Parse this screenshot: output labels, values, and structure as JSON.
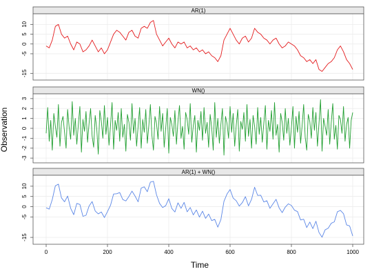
{
  "chart_data": {
    "type": "line",
    "xlabel": "Time",
    "ylabel": "Observation",
    "xlim": [
      0,
      1000
    ],
    "x_ticks": [
      0,
      200,
      400,
      600,
      800,
      1000
    ],
    "grid": true,
    "panels": [
      {
        "title": "AR(1)",
        "color": "#e41a1c",
        "ylim": [
          -17,
          14
        ],
        "y_ticks": [
          10,
          5,
          0,
          -5,
          -15
        ],
        "series": [
          {
            "x": [
              0,
              10,
              20,
              30,
              40,
              50,
              60,
              70,
              80,
              90,
              100,
              110,
              120,
              130,
              140,
              150,
              160,
              170,
              180,
              190,
              200,
              210,
              220,
              230,
              240,
              250,
              260,
              270,
              280,
              290,
              300,
              310,
              320,
              330,
              340,
              350,
              360,
              370,
              380,
              390,
              400,
              410,
              420,
              430,
              440,
              450,
              460,
              470,
              480,
              490,
              500,
              510,
              520,
              530,
              540,
              550,
              560,
              570,
              580,
              590,
              600,
              610,
              620,
              630,
              640,
              650,
              660,
              670,
              680,
              690,
              700,
              710,
              720,
              730,
              740,
              750,
              760,
              770,
              780,
              790,
              800,
              810,
              820,
              830,
              840,
              850,
              860,
              870,
              880,
              890,
              900,
              910,
              920,
              930,
              940,
              950,
              960,
              970,
              980,
              990,
              1000
            ],
            "y": [
              -1,
              -2,
              2,
              9,
              10,
              5,
              3,
              4,
              0,
              -3,
              1,
              0,
              -4,
              -3,
              -1,
              2,
              -1,
              -4,
              -2,
              -5,
              -3,
              1,
              5,
              7,
              6,
              4,
              2,
              6,
              7,
              4,
              3,
              8,
              9,
              8,
              11,
              12,
              5,
              2,
              -1,
              1,
              3,
              0,
              -2,
              1,
              0,
              1,
              -2,
              -1,
              -3,
              -2,
              -4,
              -3,
              -5,
              -4,
              -6,
              -7,
              -9,
              -6,
              2,
              5,
              8,
              5,
              2,
              0,
              3,
              4,
              1,
              3,
              8,
              6,
              5,
              3,
              2,
              0,
              2,
              3,
              0,
              -2,
              -1,
              1,
              0,
              -1,
              -3,
              -6,
              -7,
              -9,
              -8,
              -10,
              -8,
              -13,
              -14,
              -12,
              -10,
              -9,
              -7,
              -3,
              -1,
              -4,
              -8,
              -10,
              -13
            ]
          }
        ]
      },
      {
        "title": "WN()",
        "color": "#1f9e2f",
        "ylim": [
          -3.2,
          3.2
        ],
        "y_ticks": [
          3,
          2,
          1,
          0,
          -1,
          -2,
          -3
        ],
        "series": [
          {
            "x": [
              0,
              5,
              10,
              15,
              20,
              25,
              30,
              35,
              40,
              45,
              50,
              55,
              60,
              65,
              70,
              75,
              80,
              85,
              90,
              95,
              100,
              105,
              110,
              115,
              120,
              125,
              130,
              135,
              140,
              145,
              150,
              155,
              160,
              165,
              170,
              175,
              180,
              185,
              190,
              195,
              200,
              205,
              210,
              215,
              220,
              225,
              230,
              235,
              240,
              245,
              250,
              255,
              260,
              265,
              270,
              275,
              280,
              285,
              290,
              295,
              300,
              305,
              310,
              315,
              320,
              325,
              330,
              335,
              340,
              345,
              350,
              355,
              360,
              365,
              370,
              375,
              380,
              385,
              390,
              395,
              400,
              405,
              410,
              415,
              420,
              425,
              430,
              435,
              440,
              445,
              450,
              455,
              460,
              465,
              470,
              475,
              480,
              485,
              490,
              495,
              500,
              505,
              510,
              515,
              520,
              525,
              530,
              535,
              540,
              545,
              550,
              555,
              560,
              565,
              570,
              575,
              580,
              585,
              590,
              595,
              600,
              605,
              610,
              615,
              620,
              625,
              630,
              635,
              640,
              645,
              650,
              655,
              660,
              665,
              670,
              675,
              680,
              685,
              690,
              695,
              700,
              705,
              710,
              715,
              720,
              725,
              730,
              735,
              740,
              745,
              750,
              755,
              760,
              765,
              770,
              775,
              780,
              785,
              790,
              795,
              800,
              805,
              810,
              815,
              820,
              825,
              830,
              835,
              840,
              845,
              850,
              855,
              860,
              865,
              870,
              875,
              880,
              885,
              890,
              895,
              900,
              905,
              910,
              915,
              920,
              925,
              930,
              935,
              940,
              945,
              950,
              955,
              960,
              965,
              970,
              975,
              980,
              985,
              990,
              995,
              1000
            ],
            "y": [
              -0.5,
              2.1,
              -1.3,
              0.8,
              -2.2,
              1.5,
              0.2,
              -0.9,
              2.4,
              -1.8,
              0.6,
              1.2,
              -0.4,
              -2.0,
              1.9,
              0.1,
              -1.1,
              2.7,
              -0.7,
              1.0,
              -1.6,
              0.4,
              2.2,
              -2.4,
              0.9,
              -0.3,
              1.7,
              -1.4,
              0.5,
              2.0,
              -0.8,
              -1.9,
              1.3,
              0.0,
              -2.6,
              1.8,
              0.7,
              -1.0,
              2.3,
              -0.6,
              1.1,
              -1.7,
              0.3,
              2.6,
              -2.1,
              0.8,
              -0.2,
              1.6,
              -1.3,
              2.0,
              -0.9,
              0.4,
              -2.3,
              1.4,
              0.6,
              -1.2,
              2.5,
              -0.5,
              1.0,
              -1.8,
              0.2,
              2.1,
              -2.0,
              0.9,
              -0.4,
              1.9,
              -1.5,
              0.3,
              2.4,
              -0.7,
              -2.2,
              1.2,
              0.5,
              -1.1,
              2.2,
              -0.3,
              1.5,
              -1.9,
              0.0,
              2.0,
              -2.5,
              1.1,
              0.4,
              -0.8,
              1.8,
              -1.6,
              0.7,
              2.3,
              -1.0,
              0.2,
              -2.1,
              1.6,
              0.9,
              -0.6,
              2.5,
              -1.4,
              0.3,
              1.3,
              -2.4,
              0.8,
              -0.2,
              1.7,
              -1.2,
              2.1,
              -0.5,
              0.6,
              -1.9,
              1.4,
              0.1,
              -2.2,
              2.6,
              -0.9,
              1.0,
              -1.5,
              0.4,
              2.0,
              -2.7,
              1.2,
              0.5,
              -1.0,
              2.2,
              -0.4,
              1.5,
              -1.8,
              0.3,
              1.9,
              -2.3,
              0.7,
              -0.1,
              1.6,
              -1.3,
              2.4,
              -0.8,
              0.9,
              -2.0,
              1.3,
              0.2,
              -1.6,
              2.1,
              -0.6,
              1.1,
              -1.4,
              0.5,
              2.3,
              -2.1,
              0.8,
              -0.3,
              1.8,
              -1.1,
              2.6,
              -0.7,
              0.4,
              -2.4,
              1.5,
              0.6,
              -1.2,
              2.0,
              -0.5,
              1.0,
              -1.7,
              0.1,
              2.2,
              -2.0,
              1.2,
              -0.4,
              1.7,
              -1.5,
              0.3,
              2.4,
              -0.9,
              -2.2,
              1.4,
              0.7,
              -1.0,
              2.1,
              -0.2,
              1.6,
              -1.8,
              0.5,
              2.9,
              -2.3,
              1.0,
              0.2,
              -0.7,
              1.9,
              -1.6,
              0.6,
              2.5,
              -1.1,
              0.3,
              -2.1,
              1.3,
              0.9,
              -0.5,
              2.2,
              -1.3,
              0.4,
              1.1,
              -2.0,
              0.8,
              1.6
            ]
          }
        ]
      },
      {
        "title": "AR(1) + WN()",
        "color": "#5a86e6",
        "ylim": [
          -17,
          14
        ],
        "y_ticks": [
          10,
          5,
          0,
          -5,
          -15
        ],
        "series": [
          {
            "x": [
              0,
              10,
              20,
              30,
              40,
              50,
              60,
              70,
              80,
              90,
              100,
              110,
              120,
              130,
              140,
              150,
              160,
              170,
              180,
              190,
              200,
              210,
              220,
              230,
              240,
              250,
              260,
              270,
              280,
              290,
              300,
              310,
              320,
              330,
              340,
              350,
              360,
              370,
              380,
              390,
              400,
              410,
              420,
              430,
              440,
              450,
              460,
              470,
              480,
              490,
              500,
              510,
              520,
              530,
              540,
              550,
              560,
              570,
              580,
              590,
              600,
              610,
              620,
              630,
              640,
              650,
              660,
              670,
              680,
              690,
              700,
              710,
              720,
              730,
              740,
              750,
              760,
              770,
              780,
              790,
              800,
              810,
              820,
              830,
              840,
              850,
              860,
              870,
              880,
              890,
              900,
              910,
              920,
              930,
              940,
              950,
              960,
              970,
              980,
              990,
              1000
            ],
            "y": [
              -0.5,
              -1.2,
              3.5,
              10.2,
              11.0,
              4.3,
              2.4,
              5.2,
              -0.8,
              -3.9,
              1.6,
              1.1,
              -4.7,
              -4.2,
              0.3,
              2.5,
              -2.1,
              -3.5,
              -2.6,
              -5.3,
              -2.4,
              0.7,
              6.2,
              6.3,
              6.9,
              3.5,
              2.8,
              5.0,
              7.6,
              5.2,
              2.4,
              9.1,
              9.7,
              7.3,
              12.0,
              12.4,
              5.8,
              1.6,
              -0.4,
              0.5,
              3.9,
              -0.9,
              -2.6,
              1.9,
              -0.8,
              2.1,
              -2.5,
              -0.4,
              -4.0,
              -1.6,
              -5.1,
              -2.2,
              -5.7,
              -3.6,
              -6.8,
              -6.2,
              -10.0,
              -6.3,
              2.6,
              6.2,
              8.4,
              4.2,
              2.9,
              0.3,
              2.0,
              4.9,
              0.4,
              3.6,
              9.5,
              5.5,
              5.6,
              2.3,
              2.9,
              -0.8,
              1.4,
              3.6,
              -0.6,
              -2.9,
              -0.2,
              1.4,
              0.6,
              -1.7,
              -2.4,
              -6.5,
              -6.1,
              -10.2,
              -7.5,
              -10.7,
              -7.1,
              -12.6,
              -14.9,
              -11.3,
              -10.5,
              -8.1,
              -7.4,
              -2.5,
              -1.8,
              -3.4,
              -8.9,
              -9.4,
              -14.3
            ]
          }
        ]
      }
    ]
  }
}
